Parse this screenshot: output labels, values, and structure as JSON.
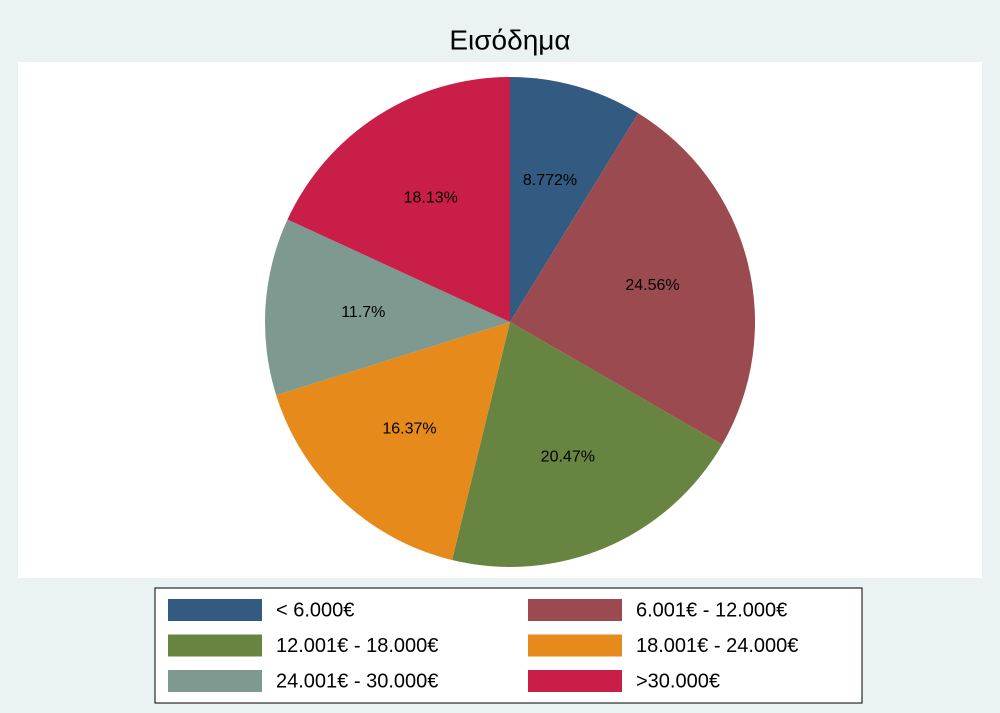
{
  "chart_data": {
    "type": "pie",
    "title": "Εισόδημα",
    "categories": [
      "< 6.000€",
      "6.001€ - 12.000€",
      "12.001€ - 18.000€",
      "18.001€ - 24.000€",
      "24.001€ - 30.000€",
      ">30.000€"
    ],
    "values": [
      8.772,
      24.56,
      20.47,
      16.37,
      11.7,
      18.13
    ],
    "value_labels": [
      "8.772%",
      "24.56%",
      "20.47%",
      "16.37%",
      "11.7%",
      "18.13%"
    ],
    "colors": [
      "#335a80",
      "#9b4a4f",
      "#678441",
      "#e68a1b",
      "#7e998f",
      "#c81e48"
    ]
  }
}
